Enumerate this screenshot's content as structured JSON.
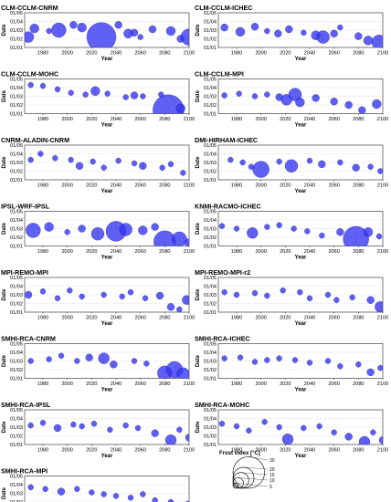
{
  "chart_data": {
    "type": "scatter",
    "xlabel": "Year",
    "ylabel": "Date",
    "xlim": [
      1965,
      2100
    ],
    "xticks": [
      "1980",
      "2000",
      "2020",
      "2040",
      "2060",
      "2080",
      "2100"
    ],
    "xtick_values": [
      1980,
      2000,
      2020,
      2040,
      2060,
      2080,
      2100
    ],
    "yticks": [
      "01/01",
      "01/02",
      "01/03",
      "01/04",
      "01/05"
    ],
    "ylim": [
      1,
      5
    ],
    "marker_color": "#3333ee",
    "legend": {
      "title": "Frost index [°C]",
      "sizes": [
        "30",
        "20",
        "15",
        "10",
        "5"
      ],
      "size_values": [
        30,
        20,
        15,
        10,
        5
      ]
    },
    "panels": [
      {
        "title": "CLM-CCLM-CNRM",
        "points": [
          [
            1968,
            2.2,
            6
          ],
          [
            1973,
            3.2,
            5
          ],
          [
            1985,
            2.9,
            3
          ],
          [
            1993,
            3.0,
            8
          ],
          [
            2005,
            3.6,
            4
          ],
          [
            2012,
            3.3,
            5
          ],
          [
            2028,
            2.2,
            16
          ],
          [
            2042,
            3.6,
            4
          ],
          [
            2050,
            2.6,
            5
          ],
          [
            2055,
            2.7,
            4
          ],
          [
            2060,
            2.2,
            3
          ],
          [
            2070,
            3.1,
            4
          ],
          [
            2085,
            2.9,
            5
          ],
          [
            2093,
            2.0,
            4
          ],
          [
            2100,
            2.2,
            9
          ]
        ]
      },
      {
        "title": "CLM-CCLM-ICHEC",
        "points": [
          [
            1970,
            3.3,
            4
          ],
          [
            1983,
            2.8,
            5
          ],
          [
            1995,
            3.4,
            4
          ],
          [
            2005,
            2.9,
            3
          ],
          [
            2014,
            2.6,
            4
          ],
          [
            2023,
            3.1,
            4
          ],
          [
            2035,
            2.7,
            3
          ],
          [
            2045,
            2.4,
            5
          ],
          [
            2051,
            2.2,
            7
          ],
          [
            2060,
            2.6,
            4
          ],
          [
            2065,
            3.3,
            3
          ],
          [
            2080,
            2.3,
            4
          ],
          [
            2088,
            1.8,
            5
          ],
          [
            2097,
            1.6,
            8
          ]
        ]
      },
      {
        "title": "CLM-CCLM-MOHC",
        "points": [
          [
            1970,
            4.3,
            3
          ],
          [
            1980,
            4.2,
            3
          ],
          [
            1992,
            3.8,
            3
          ],
          [
            2003,
            3.4,
            3
          ],
          [
            2015,
            3.2,
            3
          ],
          [
            2023,
            3.6,
            5
          ],
          [
            2033,
            3.3,
            3
          ],
          [
            2048,
            2.9,
            3
          ],
          [
            2055,
            3.1,
            4
          ],
          [
            2062,
            3.0,
            3
          ],
          [
            2077,
            3.2,
            3
          ],
          [
            2083,
            1.4,
            17
          ],
          [
            2093,
            1.6,
            5
          ]
        ]
      },
      {
        "title": "CLM-CCLM-MPI",
        "points": [
          [
            1970,
            3.1,
            3
          ],
          [
            1982,
            3.3,
            3
          ],
          [
            1995,
            3.0,
            3
          ],
          [
            2005,
            3.2,
            3
          ],
          [
            2015,
            2.9,
            4
          ],
          [
            2021,
            2.6,
            6
          ],
          [
            2028,
            3.2,
            7
          ],
          [
            2032,
            2.3,
            5
          ],
          [
            2045,
            2.8,
            4
          ],
          [
            2060,
            2.4,
            4
          ],
          [
            2072,
            2.0,
            4
          ],
          [
            2083,
            1.4,
            4
          ],
          [
            2095,
            2.1,
            5
          ]
        ]
      },
      {
        "title": "CNRM-ALADIN-CNRM",
        "points": [
          [
            1970,
            3.3,
            3
          ],
          [
            1978,
            4.0,
            3
          ],
          [
            1990,
            3.5,
            3
          ],
          [
            2003,
            3.3,
            3
          ],
          [
            2010,
            2.6,
            4
          ],
          [
            2021,
            3.1,
            3
          ],
          [
            2030,
            2.4,
            3
          ],
          [
            2042,
            3.2,
            3
          ],
          [
            2055,
            2.9,
            3
          ],
          [
            2062,
            2.6,
            4
          ],
          [
            2078,
            2.4,
            3
          ],
          [
            2085,
            2.8,
            3
          ],
          [
            2095,
            1.8,
            3
          ]
        ]
      },
      {
        "title": "DMI-HIRHAM-ICHEC",
        "points": [
          [
            1975,
            3.3,
            3
          ],
          [
            1985,
            3.0,
            3
          ],
          [
            1992,
            2.5,
            3
          ],
          [
            2000,
            2.2,
            9
          ],
          [
            2015,
            3.1,
            3
          ],
          [
            2025,
            2.6,
            7
          ],
          [
            2040,
            3.2,
            3
          ],
          [
            2050,
            2.8,
            4
          ],
          [
            2065,
            3.0,
            3
          ],
          [
            2078,
            2.4,
            4
          ],
          [
            2090,
            2.5,
            3
          ],
          [
            2098,
            2.0,
            3
          ]
        ]
      },
      {
        "title": "IPSL-WRF-IPSL",
        "points": [
          [
            1972,
            2.8,
            8
          ],
          [
            1985,
            3.2,
            5
          ],
          [
            2000,
            2.6,
            3
          ],
          [
            2012,
            3.0,
            4
          ],
          [
            2025,
            2.4,
            7
          ],
          [
            2040,
            2.7,
            11
          ],
          [
            2048,
            2.9,
            7
          ],
          [
            2062,
            2.8,
            5
          ],
          [
            2072,
            3.2,
            4
          ],
          [
            2080,
            1.5,
            12
          ],
          [
            2092,
            1.8,
            8
          ],
          [
            2099,
            1.4,
            4
          ]
        ]
      },
      {
        "title": "KNMI-RACMO-ICHEC",
        "points": [
          [
            1968,
            3.3,
            3
          ],
          [
            1980,
            3.0,
            3
          ],
          [
            1993,
            2.5,
            6
          ],
          [
            2005,
            3.2,
            3
          ],
          [
            2015,
            3.4,
            3
          ],
          [
            2027,
            3.0,
            3
          ],
          [
            2038,
            2.7,
            3
          ],
          [
            2050,
            2.2,
            3
          ],
          [
            2065,
            2.6,
            4
          ],
          [
            2078,
            1.8,
            14
          ],
          [
            2088,
            2.6,
            5
          ],
          [
            2097,
            2.1,
            3
          ]
        ]
      },
      {
        "title": "MPI-REMO-MPI",
        "points": [
          [
            1968,
            3.0,
            4
          ],
          [
            1980,
            3.4,
            3
          ],
          [
            1992,
            2.6,
            3
          ],
          [
            2002,
            3.5,
            3
          ],
          [
            2012,
            2.8,
            3
          ],
          [
            2030,
            3.0,
            3
          ],
          [
            2045,
            2.8,
            3
          ],
          [
            2052,
            3.3,
            3
          ],
          [
            2064,
            2.6,
            3
          ],
          [
            2076,
            2.9,
            4
          ],
          [
            2085,
            1.6,
            4
          ],
          [
            2092,
            1.3,
            3
          ],
          [
            2098,
            2.4,
            5
          ]
        ]
      },
      {
        "title": "MPI-REMO-MPI-r2",
        "points": [
          [
            1970,
            3.3,
            3
          ],
          [
            1980,
            3.0,
            3
          ],
          [
            1995,
            3.2,
            3
          ],
          [
            2005,
            2.9,
            3
          ],
          [
            2018,
            3.5,
            3
          ],
          [
            2032,
            3.3,
            3
          ],
          [
            2040,
            2.6,
            3
          ],
          [
            2055,
            3.0,
            3
          ],
          [
            2062,
            2.4,
            3
          ],
          [
            2075,
            2.7,
            3
          ],
          [
            2090,
            2.4,
            4
          ],
          [
            2098,
            1.6,
            6
          ]
        ]
      },
      {
        "title": "SMHI-RCA-CNRM",
        "points": [
          [
            1970,
            3.0,
            3
          ],
          [
            1985,
            3.2,
            3
          ],
          [
            1995,
            3.6,
            3
          ],
          [
            2008,
            3.0,
            3
          ],
          [
            2018,
            3.4,
            4
          ],
          [
            2030,
            3.3,
            6
          ],
          [
            2038,
            2.6,
            4
          ],
          [
            2055,
            3.0,
            3
          ],
          [
            2065,
            2.7,
            3
          ],
          [
            2080,
            1.6,
            8
          ],
          [
            2088,
            2.0,
            9
          ],
          [
            2095,
            1.5,
            7
          ]
        ]
      },
      {
        "title": "SMHI-RCA-ICHEC",
        "points": [
          [
            1970,
            3.3,
            3
          ],
          [
            1983,
            3.4,
            3
          ],
          [
            1995,
            2.9,
            3
          ],
          [
            2005,
            3.1,
            3
          ],
          [
            2015,
            3.3,
            3
          ],
          [
            2028,
            3.1,
            3
          ],
          [
            2040,
            2.8,
            3
          ],
          [
            2055,
            3.0,
            3
          ],
          [
            2065,
            2.4,
            3
          ],
          [
            2080,
            2.6,
            3
          ],
          [
            2090,
            1.7,
            4
          ],
          [
            2098,
            2.2,
            3
          ]
        ]
      },
      {
        "title": "SMHI-RCA-IPSL",
        "points": [
          [
            1970,
            3.2,
            3
          ],
          [
            1980,
            3.5,
            3
          ],
          [
            1992,
            2.9,
            4
          ],
          [
            2005,
            3.3,
            3
          ],
          [
            2012,
            3.1,
            3
          ],
          [
            2022,
            3.4,
            3
          ],
          [
            2035,
            2.7,
            3
          ],
          [
            2048,
            3.2,
            3
          ],
          [
            2058,
            2.9,
            3
          ],
          [
            2072,
            2.3,
            4
          ],
          [
            2085,
            1.5,
            6
          ],
          [
            2092,
            2.7,
            3
          ],
          [
            2100,
            1.8,
            4
          ]
        ]
      },
      {
        "title": "SMHI-RCA-MOHC",
        "points": [
          [
            1968,
            3.4,
            3
          ],
          [
            1980,
            3.1,
            3
          ],
          [
            1990,
            2.6,
            3
          ],
          [
            2003,
            3.6,
            3
          ],
          [
            2015,
            3.0,
            3
          ],
          [
            2022,
            1.6,
            6
          ],
          [
            2035,
            2.9,
            3
          ],
          [
            2048,
            3.1,
            3
          ],
          [
            2060,
            2.4,
            3
          ],
          [
            2072,
            1.9,
            4
          ],
          [
            2085,
            1.3,
            6
          ],
          [
            2092,
            2.4,
            3
          ],
          [
            2100,
            1.5,
            4
          ]
        ]
      },
      {
        "title": "SMHI-RCA-MPI",
        "points": [
          [
            1970,
            3.7,
            3
          ],
          [
            1982,
            3.5,
            3
          ],
          [
            1995,
            3.2,
            4
          ],
          [
            2008,
            3.5,
            3
          ],
          [
            2020,
            3.1,
            3
          ],
          [
            2030,
            2.9,
            3
          ],
          [
            2040,
            2.7,
            3
          ],
          [
            2052,
            2.5,
            3
          ],
          [
            2062,
            2.9,
            3
          ],
          [
            2072,
            2.2,
            3
          ],
          [
            2085,
            2.0,
            3
          ],
          [
            2093,
            1.6,
            3
          ],
          [
            2099,
            1.8,
            3
          ]
        ]
      }
    ]
  }
}
